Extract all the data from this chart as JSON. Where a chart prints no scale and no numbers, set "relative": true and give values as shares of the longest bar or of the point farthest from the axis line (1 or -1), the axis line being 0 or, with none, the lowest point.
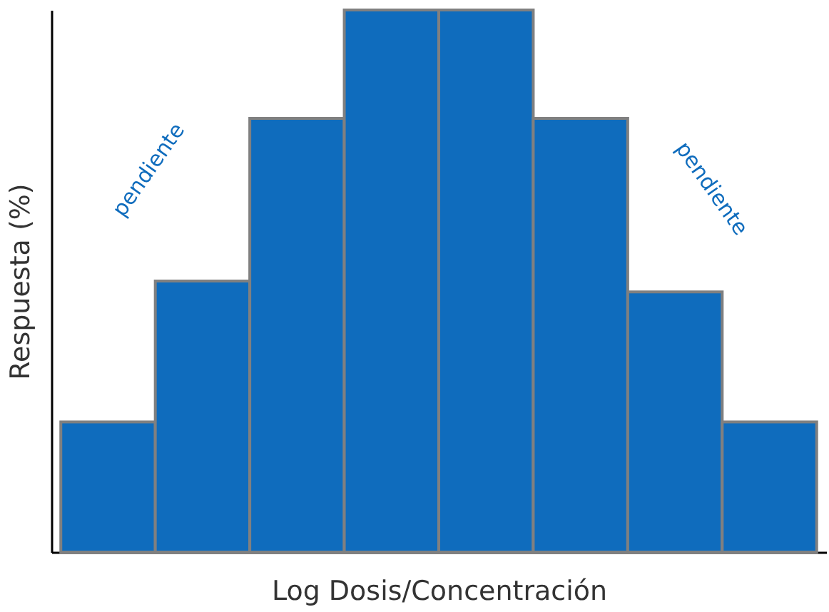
{
  "chart_data": {
    "type": "bar",
    "relative": true,
    "xlabel": "Log Dosis/Concentración",
    "ylabel": "Respuesta (%)",
    "categories": [
      null,
      null,
      null,
      null,
      null,
      null,
      null,
      null
    ],
    "values": [
      0.24,
      0.5,
      0.8,
      1,
      1,
      0.8,
      0.48,
      0.24
    ],
    "color": "#0f6cbd",
    "annotations": [
      "pendiente",
      "pendiente"
    ],
    "grid": false
  }
}
